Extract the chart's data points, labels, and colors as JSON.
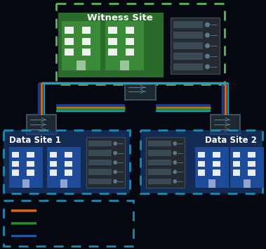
{
  "bg_color": "#050810",
  "line_orange": "#d4691e",
  "line_blue_dark": "#1a3a8a",
  "line_blue_mid": "#2060b0",
  "line_green": "#2d8a2d",
  "line_cyan": "#00aacc",
  "switch_fill": "#1e2830",
  "switch_edge": "#4a5a6a",
  "title": "Witness Site",
  "site1_label": "Data Site 1",
  "site2_label": "Data Site 2",
  "dashed_green": "#5ab85a",
  "dashed_cyan": "#1e8ab0",
  "witness_fill": "#2a6a2a",
  "witness_inner": "#3a8a3a",
  "data_fill": "#1a3a70",
  "data_inner": "#1e4a9a",
  "rack_fill": "#252a30",
  "rack_edge": "#3a4a55",
  "rack_slot": "#3a4a55",
  "building_fill_green": "#3a8a4a",
  "building_fill_blue": "#1a5aaa",
  "building_win": "#ffffff"
}
